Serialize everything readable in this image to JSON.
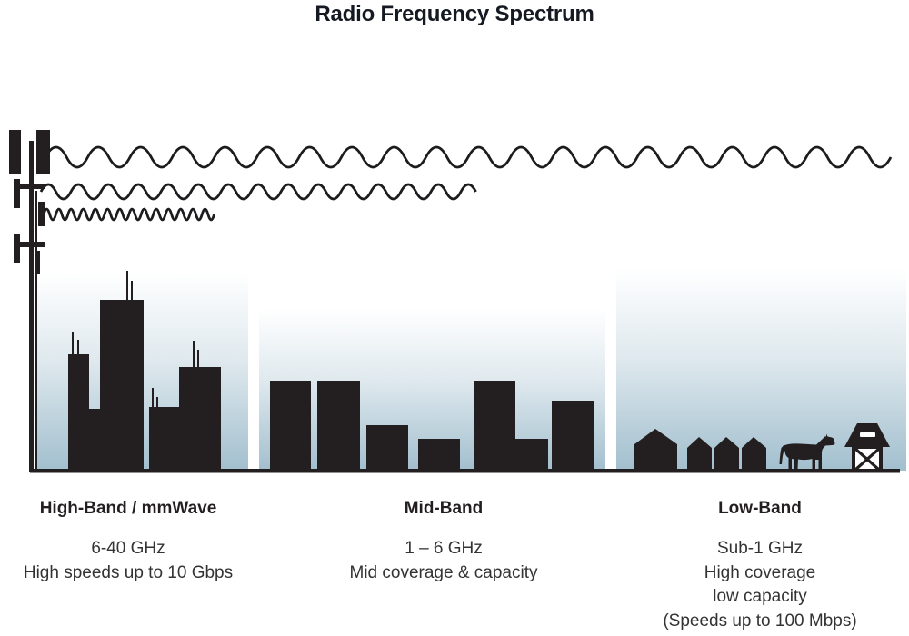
{
  "title": "Radio Frequency Spectrum",
  "colors": {
    "silhouette": "#231f20",
    "wave_stroke": "#1c1c1e",
    "sky_gradient_bottom": "#a2bfce",
    "title_text": "#151a22",
    "body_text": "#333333"
  },
  "bands": [
    {
      "id": "high",
      "label": "High-Band / mmWave",
      "lines": [
        "6-40 GHz",
        "High speeds up to 10 Gbps"
      ]
    },
    {
      "id": "mid",
      "label": "Mid-Band",
      "lines": [
        "1 – 6 GHz",
        "Mid coverage & capacity"
      ]
    },
    {
      "id": "low",
      "label": "Low-Band",
      "lines": [
        "Sub-1 GHz",
        "High coverage",
        "low capacity",
        "(Speeds up to 100 Mbps)"
      ]
    }
  ],
  "icons": [
    "cell-tower-icon",
    "short-wave-icon",
    "medium-wave-icon",
    "long-wave-icon",
    "skyscrapers-icon",
    "houses-icon",
    "cow-icon",
    "barn-icon"
  ]
}
